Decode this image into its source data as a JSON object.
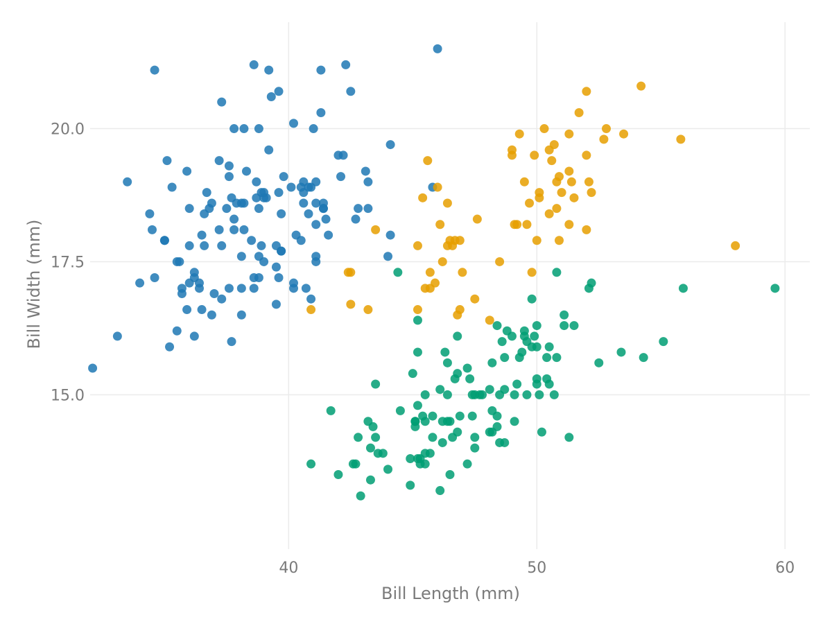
{
  "chart_data": {
    "type": "scatter",
    "title": "",
    "xlabel": "Bill Length (mm)",
    "ylabel": "Bill Width (mm)",
    "xlim": [
      32,
      61
    ],
    "ylim": [
      12.1,
      22.0
    ],
    "xticks": [
      40,
      50,
      60
    ],
    "xtick_labels": [
      "40",
      "50",
      "60"
    ],
    "yticks": [
      15.0,
      17.5,
      20.0
    ],
    "ytick_labels": [
      "15.0",
      "17.5",
      "20.0"
    ],
    "grid": true,
    "legend": "none",
    "series": [
      {
        "color": "#1f78b4",
        "points": [
          [
            32.1,
            15.5
          ],
          [
            33.1,
            16.1
          ],
          [
            33.5,
            19.0
          ],
          [
            34.0,
            17.1
          ],
          [
            34.4,
            18.4
          ],
          [
            34.5,
            18.1
          ],
          [
            34.6,
            21.1
          ],
          [
            34.6,
            17.2
          ],
          [
            35.0,
            17.9
          ],
          [
            35.1,
            19.4
          ],
          [
            35.2,
            15.9
          ],
          [
            35.3,
            18.9
          ],
          [
            35.5,
            16.2
          ],
          [
            35.5,
            17.5
          ],
          [
            35.6,
            17.5
          ],
          [
            35.7,
            17.0
          ],
          [
            35.7,
            16.9
          ],
          [
            35.9,
            16.6
          ],
          [
            35.9,
            19.2
          ],
          [
            36.0,
            18.5
          ],
          [
            36.0,
            17.1
          ],
          [
            36.0,
            17.8
          ],
          [
            36.2,
            16.1
          ],
          [
            36.2,
            17.2
          ],
          [
            36.2,
            17.3
          ],
          [
            36.4,
            17.0
          ],
          [
            36.4,
            17.1
          ],
          [
            36.5,
            16.6
          ],
          [
            36.6,
            18.4
          ],
          [
            36.6,
            17.8
          ],
          [
            36.7,
            18.8
          ],
          [
            36.8,
            18.5
          ],
          [
            36.9,
            18.6
          ],
          [
            36.9,
            16.5
          ],
          [
            37.0,
            16.9
          ],
          [
            37.2,
            18.1
          ],
          [
            37.2,
            19.4
          ],
          [
            37.3,
            20.5
          ],
          [
            37.3,
            17.8
          ],
          [
            37.3,
            16.8
          ],
          [
            37.6,
            19.1
          ],
          [
            37.6,
            19.3
          ],
          [
            37.6,
            17.0
          ],
          [
            37.7,
            18.7
          ],
          [
            37.7,
            16.0
          ],
          [
            37.8,
            20.0
          ],
          [
            37.8,
            18.1
          ],
          [
            37.8,
            18.3
          ],
          [
            37.9,
            18.6
          ],
          [
            38.1,
            18.6
          ],
          [
            38.1,
            17.0
          ],
          [
            38.1,
            16.5
          ],
          [
            38.1,
            17.6
          ],
          [
            38.2,
            20.0
          ],
          [
            38.2,
            18.1
          ],
          [
            38.3,
            19.2
          ],
          [
            38.5,
            17.9
          ],
          [
            38.6,
            21.2
          ],
          [
            38.6,
            17.0
          ],
          [
            38.6,
            17.2
          ],
          [
            38.7,
            19.0
          ],
          [
            38.8,
            17.6
          ],
          [
            38.8,
            17.2
          ],
          [
            38.8,
            20.0
          ],
          [
            38.9,
            18.8
          ],
          [
            38.9,
            17.8
          ],
          [
            39.0,
            18.7
          ],
          [
            39.0,
            17.5
          ],
          [
            39.1,
            18.7
          ],
          [
            39.2,
            19.6
          ],
          [
            39.2,
            21.1
          ],
          [
            39.3,
            20.6
          ],
          [
            39.5,
            16.7
          ],
          [
            39.5,
            17.4
          ],
          [
            39.5,
            17.8
          ],
          [
            39.6,
            18.8
          ],
          [
            39.6,
            20.7
          ],
          [
            39.6,
            17.2
          ],
          [
            39.7,
            17.7
          ],
          [
            39.7,
            18.4
          ],
          [
            39.8,
            19.1
          ],
          [
            40.1,
            18.9
          ],
          [
            40.2,
            17.0
          ],
          [
            40.2,
            20.1
          ],
          [
            40.2,
            17.1
          ],
          [
            40.3,
            18.0
          ],
          [
            40.5,
            18.9
          ],
          [
            40.5,
            17.9
          ],
          [
            40.6,
            18.6
          ],
          [
            40.6,
            19.0
          ],
          [
            40.7,
            17.0
          ],
          [
            40.8,
            18.9
          ],
          [
            40.9,
            16.8
          ],
          [
            41.0,
            20.0
          ],
          [
            41.1,
            18.2
          ],
          [
            41.1,
            17.5
          ],
          [
            41.1,
            19.0
          ],
          [
            41.1,
            18.6
          ],
          [
            41.3,
            20.3
          ],
          [
            41.4,
            18.5
          ],
          [
            41.5,
            18.3
          ],
          [
            41.6,
            18.0
          ],
          [
            42.0,
            19.5
          ],
          [
            42.1,
            19.1
          ],
          [
            42.2,
            19.5
          ],
          [
            42.3,
            21.2
          ],
          [
            42.5,
            20.7
          ],
          [
            42.7,
            18.3
          ],
          [
            43.1,
            19.2
          ],
          [
            43.2,
            19.0
          ],
          [
            44.1,
            19.7
          ],
          [
            44.1,
            18.0
          ],
          [
            45.8,
            18.9
          ],
          [
            46.0,
            21.5
          ],
          [
            41.3,
            21.1
          ],
          [
            41.4,
            18.6
          ],
          [
            40.9,
            18.9
          ],
          [
            38.8,
            18.5
          ],
          [
            39.0,
            18.8
          ],
          [
            43.2,
            18.5
          ],
          [
            42.8,
            18.5
          ],
          [
            40.8,
            18.4
          ],
          [
            41.1,
            17.6
          ],
          [
            39.7,
            17.7
          ],
          [
            37.5,
            18.5
          ],
          [
            38.2,
            18.6
          ],
          [
            44.0,
            17.6
          ],
          [
            35.0,
            17.9
          ],
          [
            41.4,
            18.5
          ],
          [
            40.6,
            18.8
          ],
          [
            36.5,
            18.0
          ],
          [
            38.7,
            18.7
          ]
        ]
      },
      {
        "color": "#e69f00",
        "points": [
          [
            40.9,
            16.6
          ],
          [
            42.4,
            17.3
          ],
          [
            42.5,
            17.3
          ],
          [
            42.5,
            16.7
          ],
          [
            43.2,
            16.6
          ],
          [
            43.5,
            18.1
          ],
          [
            45.2,
            17.8
          ],
          [
            45.2,
            16.6
          ],
          [
            45.4,
            18.7
          ],
          [
            45.5,
            17.0
          ],
          [
            45.6,
            19.4
          ],
          [
            45.7,
            17.0
          ],
          [
            45.7,
            17.3
          ],
          [
            45.9,
            17.1
          ],
          [
            46.0,
            18.9
          ],
          [
            46.1,
            18.2
          ],
          [
            46.2,
            17.5
          ],
          [
            46.4,
            17.8
          ],
          [
            46.4,
            18.6
          ],
          [
            46.5,
            17.9
          ],
          [
            46.6,
            17.8
          ],
          [
            46.7,
            17.9
          ],
          [
            46.8,
            16.5
          ],
          [
            46.9,
            16.6
          ],
          [
            47.0,
            17.3
          ],
          [
            47.5,
            16.8
          ],
          [
            47.6,
            18.3
          ],
          [
            48.1,
            16.4
          ],
          [
            48.5,
            17.5
          ],
          [
            49.0,
            19.5
          ],
          [
            49.0,
            19.6
          ],
          [
            49.1,
            18.2
          ],
          [
            49.2,
            18.2
          ],
          [
            49.3,
            19.9
          ],
          [
            49.5,
            19.0
          ],
          [
            49.6,
            18.2
          ],
          [
            49.7,
            18.6
          ],
          [
            49.8,
            17.3
          ],
          [
            49.9,
            19.5
          ],
          [
            50.0,
            17.9
          ],
          [
            50.1,
            18.8
          ],
          [
            50.1,
            18.7
          ],
          [
            50.3,
            20.0
          ],
          [
            50.5,
            18.4
          ],
          [
            50.5,
            19.6
          ],
          [
            50.6,
            19.4
          ],
          [
            50.7,
            19.7
          ],
          [
            50.8,
            18.5
          ],
          [
            50.8,
            19.0
          ],
          [
            50.9,
            17.9
          ],
          [
            50.9,
            19.1
          ],
          [
            51.0,
            18.8
          ],
          [
            51.3,
            18.2
          ],
          [
            51.3,
            19.9
          ],
          [
            51.3,
            19.2
          ],
          [
            51.4,
            19.0
          ],
          [
            51.5,
            18.7
          ],
          [
            51.7,
            20.3
          ],
          [
            52.0,
            18.1
          ],
          [
            52.0,
            19.5
          ],
          [
            52.0,
            20.7
          ],
          [
            52.1,
            19.0
          ],
          [
            52.2,
            18.8
          ],
          [
            52.7,
            19.8
          ],
          [
            52.8,
            20.0
          ],
          [
            53.5,
            19.9
          ],
          [
            54.2,
            20.8
          ],
          [
            55.8,
            19.8
          ],
          [
            58.0,
            17.8
          ],
          [
            46.9,
            17.9
          ]
        ]
      },
      {
        "color": "#009e73",
        "points": [
          [
            40.9,
            13.7
          ],
          [
            41.7,
            14.7
          ],
          [
            42.0,
            13.5
          ],
          [
            42.6,
            13.7
          ],
          [
            42.7,
            13.7
          ],
          [
            42.8,
            14.2
          ],
          [
            42.9,
            13.1
          ],
          [
            43.3,
            14.0
          ],
          [
            43.2,
            14.5
          ],
          [
            43.3,
            13.4
          ],
          [
            43.4,
            14.4
          ],
          [
            43.5,
            14.2
          ],
          [
            43.5,
            15.2
          ],
          [
            43.6,
            13.9
          ],
          [
            43.8,
            13.9
          ],
          [
            44.0,
            13.6
          ],
          [
            44.4,
            17.3
          ],
          [
            44.5,
            14.7
          ],
          [
            44.9,
            13.3
          ],
          [
            44.9,
            13.8
          ],
          [
            45.0,
            15.4
          ],
          [
            45.1,
            14.5
          ],
          [
            45.1,
            14.4
          ],
          [
            45.2,
            13.8
          ],
          [
            45.2,
            14.8
          ],
          [
            45.2,
            15.8
          ],
          [
            45.2,
            16.4
          ],
          [
            45.3,
            13.8
          ],
          [
            45.3,
            13.7
          ],
          [
            45.4,
            14.6
          ],
          [
            45.5,
            13.7
          ],
          [
            45.5,
            13.9
          ],
          [
            45.5,
            15.0
          ],
          [
            45.5,
            14.5
          ],
          [
            45.7,
            13.9
          ],
          [
            45.8,
            14.6
          ],
          [
            45.8,
            14.2
          ],
          [
            46.1,
            13.2
          ],
          [
            46.1,
            15.1
          ],
          [
            46.2,
            14.1
          ],
          [
            46.2,
            14.5
          ],
          [
            46.3,
            15.8
          ],
          [
            46.4,
            14.5
          ],
          [
            46.4,
            15.0
          ],
          [
            46.4,
            15.6
          ],
          [
            46.5,
            13.5
          ],
          [
            46.5,
            14.5
          ],
          [
            46.6,
            14.2
          ],
          [
            46.7,
            15.3
          ],
          [
            46.8,
            14.3
          ],
          [
            46.8,
            15.4
          ],
          [
            46.8,
            16.1
          ],
          [
            46.9,
            14.6
          ],
          [
            47.2,
            13.7
          ],
          [
            47.2,
            15.5
          ],
          [
            47.3,
            15.3
          ],
          [
            47.4,
            14.6
          ],
          [
            47.5,
            14.0
          ],
          [
            47.5,
            14.2
          ],
          [
            47.5,
            15.0
          ],
          [
            47.7,
            15.0
          ],
          [
            47.8,
            15.0
          ],
          [
            48.1,
            15.1
          ],
          [
            48.1,
            14.3
          ],
          [
            48.2,
            14.3
          ],
          [
            48.2,
            15.6
          ],
          [
            48.4,
            14.4
          ],
          [
            48.4,
            14.6
          ],
          [
            48.4,
            16.3
          ],
          [
            48.5,
            14.1
          ],
          [
            48.5,
            15.0
          ],
          [
            48.6,
            16.0
          ],
          [
            48.7,
            14.1
          ],
          [
            48.7,
            15.1
          ],
          [
            48.7,
            15.7
          ],
          [
            48.8,
            16.2
          ],
          [
            49.0,
            16.1
          ],
          [
            49.1,
            14.5
          ],
          [
            49.1,
            15.0
          ],
          [
            49.2,
            15.2
          ],
          [
            49.3,
            15.7
          ],
          [
            49.4,
            15.8
          ],
          [
            49.5,
            16.1
          ],
          [
            49.5,
            16.2
          ],
          [
            49.6,
            16.0
          ],
          [
            49.6,
            15.0
          ],
          [
            49.8,
            15.9
          ],
          [
            49.8,
            16.8
          ],
          [
            49.9,
            16.1
          ],
          [
            50.0,
            15.2
          ],
          [
            50.0,
            15.3
          ],
          [
            50.0,
            15.9
          ],
          [
            50.0,
            16.3
          ],
          [
            50.1,
            15.0
          ],
          [
            50.2,
            14.3
          ],
          [
            50.4,
            15.3
          ],
          [
            50.4,
            15.7
          ],
          [
            50.5,
            15.9
          ],
          [
            50.5,
            15.2
          ],
          [
            50.7,
            15.0
          ],
          [
            50.8,
            15.7
          ],
          [
            50.8,
            17.3
          ],
          [
            51.1,
            16.3
          ],
          [
            51.1,
            16.5
          ],
          [
            51.3,
            14.2
          ],
          [
            51.5,
            16.3
          ],
          [
            52.1,
            17.0
          ],
          [
            52.2,
            17.1
          ],
          [
            52.5,
            15.6
          ],
          [
            53.4,
            15.8
          ],
          [
            54.3,
            15.7
          ],
          [
            55.1,
            16.0
          ],
          [
            55.9,
            17.0
          ],
          [
            59.6,
            17.0
          ],
          [
            47.4,
            15.0
          ],
          [
            45.1,
            14.5
          ],
          [
            48.2,
            14.7
          ]
        ]
      }
    ]
  }
}
